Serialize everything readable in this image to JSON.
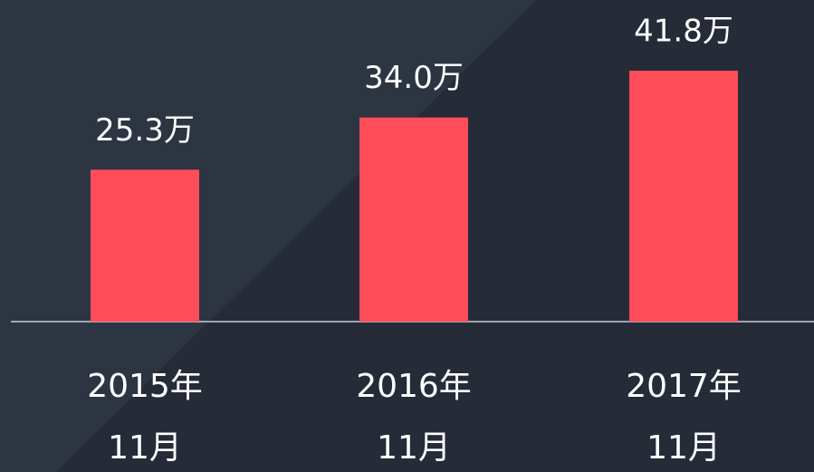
{
  "chart_data": {
    "type": "bar",
    "categories": [
      [
        "2015年",
        "11月"
      ],
      [
        "2016年",
        "11月"
      ],
      [
        "2017年",
        "11月"
      ]
    ],
    "values": [
      25.3,
      34.0,
      41.8
    ],
    "value_labels": [
      "25.3万",
      "34.0万",
      "41.8万"
    ],
    "color": "#ff4d5a"
  }
}
